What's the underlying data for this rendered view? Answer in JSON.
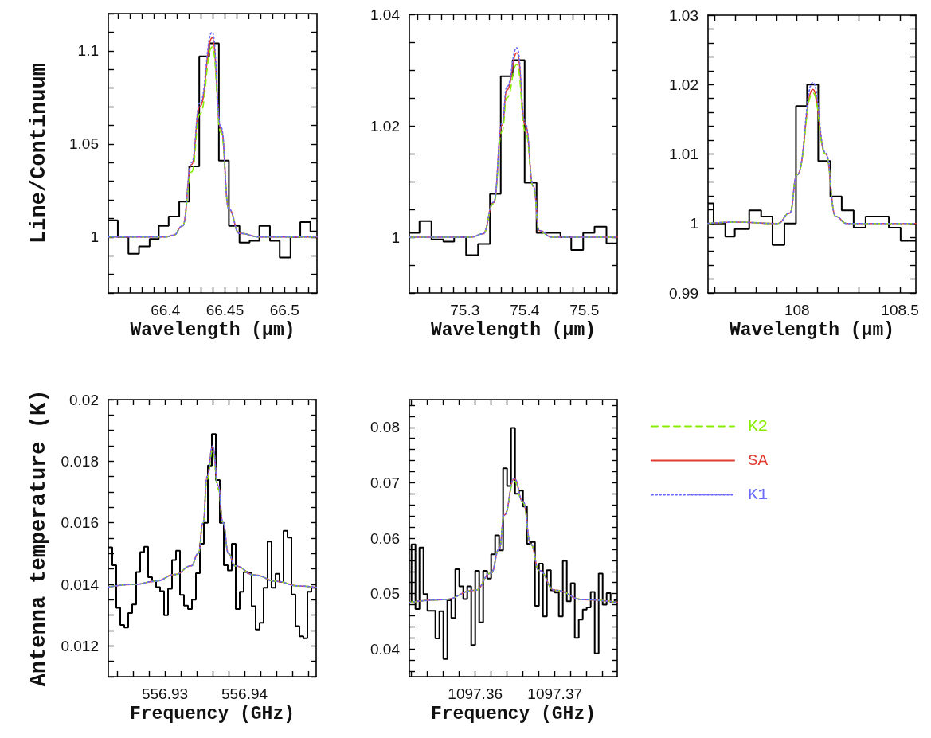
{
  "chart_data": [
    {
      "type": "line",
      "ylabel": "Line/Continuum",
      "xlabel": "Wavelength (μm)",
      "marker": "none",
      "xlim": [
        66.352,
        66.5273
      ],
      "ylim": [
        0.97,
        1.12
      ],
      "xticks": [
        {
          "value": 66.36,
          "label": null
        },
        {
          "value": 66.37,
          "label": null
        },
        {
          "value": 66.38,
          "label": null
        },
        {
          "value": 66.39,
          "label": null
        },
        66.4,
        {
          "value": 66.41,
          "label": null
        },
        {
          "value": 66.42,
          "label": null
        },
        {
          "value": 66.43,
          "label": null
        },
        {
          "value": 66.44,
          "label": null
        },
        66.45,
        {
          "value": 66.46,
          "label": null
        },
        {
          "value": 66.47,
          "label": null
        },
        {
          "value": 66.48,
          "label": null
        },
        {
          "value": 66.49,
          "label": null
        },
        66.5,
        {
          "value": 66.51,
          "label": null
        },
        {
          "value": 66.52,
          "label": null
        }
      ],
      "yticks": [
        {
          "value": 0.97,
          "label": null
        },
        {
          "value": 0.98,
          "label": null
        },
        {
          "value": 0.99,
          "label": null
        },
        1,
        {
          "value": 1.01,
          "label": null
        },
        {
          "value": 1.02,
          "label": null
        },
        {
          "value": 1.03,
          "label": null
        },
        {
          "value": 1.04,
          "label": null
        },
        1.05,
        {
          "value": 1.06,
          "label": null
        },
        {
          "value": 1.07,
          "label": null
        },
        {
          "value": 1.08,
          "label": null
        },
        {
          "value": 1.09,
          "label": null
        },
        1.1,
        {
          "value": 1.11,
          "label": null
        },
        {
          "value": 1.12,
          "label": null
        }
      ],
      "series": [
        {
          "type": "histogram",
          "color": "#000000",
          "bins": [
            66.352,
            66.36,
            66.3689,
            66.3778,
            66.3867,
            66.3944,
            66.4027,
            66.4116,
            66.42,
            66.4284,
            66.4367,
            66.4449,
            66.4533,
            66.4622,
            66.4707,
            66.4789,
            66.4878,
            66.496,
            66.5051,
            66.5133,
            66.5218,
            66.5273
          ],
          "values": [
            1.009,
            1.0,
            0.991,
            0.995,
            0.999,
            1.006,
            1.011,
            1.019,
            1.038,
            1.097,
            1.104,
            1.041,
            1.006,
            0.997,
            0.998,
            1.006,
            0.998,
            0.989,
            1.0,
            1.008,
            1.003
          ]
        },
        {
          "type": "line",
          "color": "#88ee00",
          "line_style": "dashed",
          "x": [
            66.352,
            66.38,
            66.4,
            66.4067,
            66.4144,
            66.422,
            66.4289,
            66.4393,
            66.4467,
            66.4533,
            66.4622,
            66.48,
            66.5273
          ],
          "values": [
            1.0,
            1.0,
            1.0,
            1.001,
            1.006,
            1.035,
            1.066,
            1.102,
            1.056,
            1.015,
            1.002,
            1.0,
            1.0
          ]
        },
        {
          "type": "line",
          "color": "#e03c31",
          "line_style": "solid",
          "x": [
            66.352,
            66.38,
            66.4,
            66.4067,
            66.4144,
            66.422,
            66.4289,
            66.4393,
            66.4467,
            66.4533,
            66.4622,
            66.48,
            66.5273
          ],
          "values": [
            1.0,
            1.0,
            1.0,
            1.001,
            1.006,
            1.039,
            1.07,
            1.107,
            1.058,
            1.015,
            1.002,
            1.0,
            1.0
          ]
        },
        {
          "type": "line",
          "color": "#6a6aff",
          "line_style": "dotted",
          "x": [
            66.352,
            66.38,
            66.4,
            66.4067,
            66.4144,
            66.422,
            66.4289,
            66.4393,
            66.4467,
            66.4533,
            66.4622,
            66.48,
            66.5273
          ],
          "values": [
            1.0,
            1.0,
            1.0,
            1.001,
            1.006,
            1.04,
            1.072,
            1.11,
            1.059,
            1.015,
            1.002,
            1.0,
            1.0
          ]
        }
      ]
    },
    {
      "type": "line",
      "xlabel": "Wavelength (μm)",
      "marker": "none",
      "xlim": [
        75.207,
        75.555
      ],
      "ylim": [
        0.99,
        1.04
      ],
      "xticks": [
        {
          "value": 75.22,
          "label": null
        },
        {
          "value": 75.24,
          "label": null
        },
        {
          "value": 75.26,
          "label": null
        },
        {
          "value": 75.28,
          "label": null
        },
        75.3,
        {
          "value": 75.32,
          "label": null
        },
        {
          "value": 75.34,
          "label": null
        },
        {
          "value": 75.36,
          "label": null
        },
        {
          "value": 75.38,
          "label": null
        },
        75.4,
        {
          "value": 75.42,
          "label": null
        },
        {
          "value": 75.44,
          "label": null
        },
        {
          "value": 75.46,
          "label": null
        },
        {
          "value": 75.48,
          "label": null
        },
        75.5,
        {
          "value": 75.52,
          "label": null
        },
        {
          "value": 75.54,
          "label": null
        }
      ],
      "yticks": [
        {
          "value": 0.99,
          "label": null
        },
        {
          "value": 0.995,
          "label": null
        },
        1,
        {
          "value": 1.005,
          "label": null
        },
        {
          "value": 1.01,
          "label": null
        },
        {
          "value": 1.015,
          "label": null
        },
        1.02,
        {
          "value": 1.025,
          "label": null
        },
        {
          "value": 1.03,
          "label": null
        },
        {
          "value": 1.035,
          "label": null
        },
        1.04
      ],
      "series": [
        {
          "type": "histogram",
          "color": "#000000",
          "bins": [
            75.207,
            75.224,
            75.244,
            75.264,
            75.282,
            75.302,
            75.322,
            75.342,
            75.36,
            75.38,
            75.4,
            75.42,
            75.44,
            75.46,
            75.478,
            75.498,
            75.517,
            75.537,
            75.555
          ],
          "values": [
            1.0008,
            1.0029,
            0.9996,
            0.9992,
            1.0,
            0.9968,
            0.9988,
            1.0078,
            1.0289,
            1.0318,
            1.0098,
            1.0008,
            1.0008,
            1.0,
            0.9977,
            1.0008,
            1.0019,
            0.9989
          ]
        },
        {
          "type": "line",
          "color": "#88ee00",
          "line_style": "dashed",
          "x": [
            75.207,
            75.3102,
            75.3302,
            75.348,
            75.3622,
            75.3702,
            75.3871,
            75.4013,
            75.4147,
            75.4244,
            75.4458,
            75.555
          ],
          "values": [
            1.0,
            1.0,
            1.0006,
            1.006,
            1.019,
            1.025,
            1.031,
            1.019,
            1.009,
            1.001,
            1.0,
            1.0
          ]
        },
        {
          "type": "line",
          "color": "#e03c31",
          "line_style": "solid",
          "x": [
            75.207,
            75.3102,
            75.3302,
            75.348,
            75.3622,
            75.3702,
            75.3871,
            75.4013,
            75.4147,
            75.4244,
            75.4458,
            75.555
          ],
          "values": [
            1.0,
            1.0,
            1.0006,
            1.0062,
            1.0201,
            1.0264,
            1.0331,
            1.0201,
            1.0091,
            1.0012,
            1.0,
            1.0
          ]
        },
        {
          "type": "line",
          "color": "#6a6aff",
          "line_style": "dotted",
          "x": [
            75.207,
            75.3102,
            75.3302,
            75.348,
            75.3622,
            75.3702,
            75.3871,
            75.4013,
            75.4147,
            75.4244,
            75.4458,
            75.555
          ],
          "values": [
            1.0,
            1.0,
            1.0006,
            1.0063,
            1.0205,
            1.027,
            1.034,
            1.0205,
            1.0092,
            1.0012,
            1.0,
            1.0
          ]
        }
      ]
    },
    {
      "type": "line",
      "xlabel": "Wavelength (μm)",
      "marker": "none",
      "xlim": [
        107.568,
        108.577
      ],
      "ylim": [
        0.99,
        1.03
      ],
      "xticks": [
        {
          "value": 107.6,
          "label": null
        },
        {
          "value": 107.7,
          "label": null
        },
        {
          "value": 107.8,
          "label": null
        },
        {
          "value": 107.9,
          "label": null
        },
        108,
        {
          "value": 108.1,
          "label": null
        },
        {
          "value": 108.2,
          "label": null
        },
        {
          "value": 108.3,
          "label": null
        },
        {
          "value": 108.4,
          "label": null
        },
        108.5
      ],
      "yticks": [
        0.99,
        {
          "value": 0.992,
          "label": null
        },
        {
          "value": 0.994,
          "label": null
        },
        {
          "value": 0.996,
          "label": null
        },
        {
          "value": 0.998,
          "label": null
        },
        1,
        {
          "value": 1.002,
          "label": null
        },
        {
          "value": 1.004,
          "label": null
        },
        {
          "value": 1.006,
          "label": null
        },
        {
          "value": 1.008,
          "label": null
        },
        1.01,
        {
          "value": 1.012,
          "label": null
        },
        {
          "value": 1.014,
          "label": null
        },
        {
          "value": 1.016,
          "label": null
        },
        {
          "value": 1.018,
          "label": null
        },
        1.02,
        {
          "value": 1.022,
          "label": null
        },
        {
          "value": 1.024,
          "label": null
        },
        {
          "value": 1.026,
          "label": null
        },
        {
          "value": 1.028,
          "label": null
        },
        1.03
      ],
      "series": [
        {
          "type": "histogram",
          "color": "#000000",
          "bins": [
            107.568,
            107.595,
            107.652,
            107.698,
            107.768,
            107.826,
            107.881,
            107.939,
            107.995,
            108.049,
            108.103,
            108.162,
            108.217,
            108.275,
            108.333,
            108.391,
            108.446,
            108.503,
            108.577
          ],
          "values": [
            1.0029,
            1.0,
            0.9981,
            0.9992,
            1.0019,
            1.001,
            0.9969,
            1.0,
            1.0169,
            1.02,
            1.009,
            1.0039,
            1.0019,
            0.9994,
            1.001,
            1.001,
            0.9994,
            0.9975
          ]
        },
        {
          "type": "line",
          "color": "#88ee00",
          "line_style": "dashed",
          "x": [
            107.568,
            107.7,
            107.907,
            107.965,
            108.0,
            108.077,
            108.139,
            108.188,
            108.242,
            108.577
          ],
          "values": [
            1.0,
            1.0002,
            1.0,
            1.0015,
            1.007,
            1.0188,
            1.01,
            1.001,
            1.0,
            1.0
          ]
        },
        {
          "type": "line",
          "color": "#e03c31",
          "line_style": "solid",
          "x": [
            107.568,
            107.7,
            107.907,
            107.965,
            108.0,
            108.077,
            108.139,
            108.188,
            108.242,
            108.577
          ],
          "values": [
            1.0,
            1.0002,
            1.0,
            1.0015,
            1.007,
            1.0193,
            1.01,
            1.001,
            1.0,
            1.0
          ]
        },
        {
          "type": "line",
          "color": "#6a6aff",
          "line_style": "dotted",
          "x": [
            107.568,
            107.7,
            107.907,
            107.965,
            108.0,
            108.077,
            108.139,
            108.188,
            108.242,
            108.577
          ],
          "values": [
            1.0,
            1.0002,
            1.0,
            1.0015,
            1.007,
            1.0203,
            1.0102,
            1.001,
            1.0,
            1.0
          ]
        }
      ]
    },
    {
      "type": "line",
      "ylabel": "Antenna temperature (K)",
      "xlabel": "Frequency (GHz)",
      "marker": "none",
      "xlim": [
        556.9229,
        556.949
      ],
      "ylim": [
        0.011,
        0.02
      ],
      "xticks": [
        {
          "value": 556.924,
          "label": null
        },
        {
          "value": 556.926,
          "label": null
        },
        {
          "value": 556.928,
          "label": null
        },
        556.93,
        {
          "value": 556.932,
          "label": null
        },
        {
          "value": 556.934,
          "label": null
        },
        {
          "value": 556.936,
          "label": null
        },
        {
          "value": 556.938,
          "label": null
        },
        556.94,
        {
          "value": 556.942,
          "label": null
        },
        {
          "value": 556.944,
          "label": null
        },
        {
          "value": 556.946,
          "label": null
        },
        {
          "value": 556.948,
          "label": null
        }
      ],
      "yticks": [
        {
          "value": 0.011,
          "label": null
        },
        {
          "value": 0.0115,
          "label": null
        },
        0.012,
        {
          "value": 0.0125,
          "label": null
        },
        {
          "value": 0.013,
          "label": null
        },
        {
          "value": 0.0135,
          "label": null
        },
        0.014,
        {
          "value": 0.0145,
          "label": null
        },
        {
          "value": 0.015,
          "label": null
        },
        {
          "value": 0.0155,
          "label": null
        },
        0.016,
        {
          "value": 0.0165,
          "label": null
        },
        {
          "value": 0.017,
          "label": null
        },
        {
          "value": 0.0175,
          "label": null
        },
        0.018,
        {
          "value": 0.0185,
          "label": null
        },
        {
          "value": 0.019,
          "label": null
        },
        {
          "value": 0.0195,
          "label": null
        },
        0.02
      ],
      "series": [
        {
          "type": "histogram",
          "color": "#000000",
          "bins": [
            556.9229,
            556.9234,
            556.9239,
            556.9244,
            556.9249,
            556.9254,
            556.9259,
            556.9264,
            556.9269,
            556.9274,
            556.9279,
            556.9284,
            556.9289,
            556.9294,
            556.9299,
            556.9304,
            556.9309,
            556.9314,
            556.9319,
            556.9324,
            556.9329,
            556.9334,
            556.9339,
            556.9344,
            556.9349,
            556.9354,
            556.9359,
            556.9364,
            556.9369,
            556.9374,
            556.9379,
            556.9384,
            556.9389,
            556.9394,
            556.9399,
            556.9404,
            556.9409,
            556.9414,
            556.9419,
            556.9424,
            556.9429,
            556.9434,
            556.9439,
            556.9444,
            556.9449,
            556.9454,
            556.9459,
            556.9464,
            556.9469,
            556.9474,
            556.9479,
            556.9484,
            556.949
          ],
          "values": [
            0.0152,
            0.01462,
            0.01324,
            0.01268,
            0.0126,
            0.01307,
            0.01335,
            0.0144,
            0.01505,
            0.01522,
            0.01423,
            0.01412,
            0.01391,
            0.01378,
            0.013,
            0.01386,
            0.01479,
            0.01509,
            0.01366,
            0.01331,
            0.0132,
            0.0135,
            0.01436,
            0.01532,
            0.016,
            0.01786,
            0.01888,
            0.01739,
            0.016,
            0.01462,
            0.01445,
            0.01532,
            0.0132,
            0.01376,
            0.0144,
            0.01436,
            0.01329,
            0.01253,
            0.01275,
            0.01389,
            0.01539,
            0.01389,
            0.01434,
            0.01408,
            0.01574,
            0.01552,
            0.01367,
            0.01264,
            0.01231,
            0.01225,
            0.01376,
            0.01389
          ]
        },
        {
          "type": "line",
          "color": "#88ee00",
          "line_style": "dashed",
          "x": [
            556.9229,
            556.9263,
            556.9288,
            556.9313,
            556.9333,
            556.9342,
            556.9348,
            556.9353,
            556.936,
            556.9367,
            556.9373,
            556.938,
            556.9388,
            556.9413,
            556.944,
            556.9467,
            556.949
          ],
          "values": [
            0.01391,
            0.014,
            0.0141,
            0.01432,
            0.0146,
            0.015,
            0.016,
            0.0174,
            0.01835,
            0.0171,
            0.016,
            0.015,
            0.0146,
            0.0143,
            0.0141,
            0.01395,
            0.0139
          ]
        },
        {
          "type": "line",
          "color": "#e03c31",
          "line_style": "solid",
          "x": [
            556.9229,
            556.9263,
            556.9288,
            556.9313,
            556.9333,
            556.9342,
            556.9348,
            556.9353,
            556.936,
            556.9367,
            556.9373,
            556.938,
            556.9388,
            556.9413,
            556.944,
            556.9467,
            556.949
          ],
          "values": [
            0.01391,
            0.014,
            0.0141,
            0.01432,
            0.0146,
            0.015,
            0.016,
            0.0175,
            0.01845,
            0.0172,
            0.016,
            0.015,
            0.0146,
            0.0143,
            0.0141,
            0.01395,
            0.0139
          ]
        },
        {
          "type": "line",
          "color": "#6a6aff",
          "line_style": "dotted",
          "x": [
            556.9229,
            556.9263,
            556.9288,
            556.9313,
            556.9333,
            556.9342,
            556.9348,
            556.9353,
            556.936,
            556.9367,
            556.9373,
            556.938,
            556.9388,
            556.9413,
            556.944,
            556.9467,
            556.949
          ],
          "values": [
            0.01391,
            0.014,
            0.0141,
            0.01432,
            0.0146,
            0.015,
            0.016,
            0.0175,
            0.0185,
            0.0172,
            0.016,
            0.015,
            0.0146,
            0.0143,
            0.0141,
            0.01395,
            0.0139
          ]
        }
      ]
    },
    {
      "type": "line",
      "xlabel": "Frequency (GHz)",
      "marker": "none",
      "legend": "right",
      "xlim": [
        1097.35173,
        1097.37783
      ],
      "ylim": [
        0.035,
        0.085
      ],
      "xticks": [
        {
          "value": 1097.352,
          "label": null
        },
        {
          "value": 1097.354,
          "label": null
        },
        {
          "value": 1097.356,
          "label": null
        },
        {
          "value": 1097.358,
          "label": null
        },
        1097.36,
        {
          "value": 1097.362,
          "label": null
        },
        {
          "value": 1097.364,
          "label": null
        },
        {
          "value": 1097.366,
          "label": null
        },
        {
          "value": 1097.368,
          "label": null
        },
        1097.37,
        {
          "value": 1097.372,
          "label": null
        },
        {
          "value": 1097.374,
          "label": null
        },
        {
          "value": 1097.376,
          "label": null
        }
      ],
      "yticks": [
        {
          "value": 0.036,
          "label": null
        },
        {
          "value": 0.038,
          "label": null
        },
        0.04,
        {
          "value": 0.042,
          "label": null
        },
        {
          "value": 0.044,
          "label": null
        },
        {
          "value": 0.046,
          "label": null
        },
        {
          "value": 0.048,
          "label": null
        },
        0.05,
        {
          "value": 0.052,
          "label": null
        },
        {
          "value": 0.054,
          "label": null
        },
        {
          "value": 0.056,
          "label": null
        },
        {
          "value": 0.058,
          "label": null
        },
        0.06,
        {
          "value": 0.062,
          "label": null
        },
        {
          "value": 0.064,
          "label": null
        },
        {
          "value": 0.066,
          "label": null
        },
        {
          "value": 0.068,
          "label": null
        },
        0.07,
        {
          "value": 0.072,
          "label": null
        },
        {
          "value": 0.074,
          "label": null
        },
        {
          "value": 0.076,
          "label": null
        },
        {
          "value": 0.078,
          "label": null
        },
        0.08,
        {
          "value": 0.082,
          "label": null
        },
        {
          "value": 0.084,
          "label": null
        }
      ],
      "series": [
        {
          "type": "histogram",
          "color": "#000000",
          "bins": [
            1097.35173,
            1097.352,
            1097.3525,
            1097.353,
            1097.3535,
            1097.354,
            1097.3545,
            1097.355,
            1097.3555,
            1097.356,
            1097.3565,
            1097.357,
            1097.3575,
            1097.358,
            1097.3585,
            1097.359,
            1097.3595,
            1097.36,
            1097.3605,
            1097.361,
            1097.3615,
            1097.362,
            1097.3625,
            1097.363,
            1097.3635,
            1097.364,
            1097.3645,
            1097.365,
            1097.3655,
            1097.366,
            1097.3665,
            1097.367,
            1097.3675,
            1097.368,
            1097.3685,
            1097.369,
            1097.3695,
            1097.37,
            1097.3705,
            1097.371,
            1097.3715,
            1097.372,
            1097.3725,
            1097.373,
            1097.3735,
            1097.374,
            1097.3745,
            1097.375,
            1097.3755,
            1097.376,
            1097.3765,
            1097.377,
            1097.3775,
            1097.37783
          ],
          "values": [
            0.0484,
            0.0589,
            0.0472,
            0.0583,
            0.0499,
            0.0469,
            0.0469,
            0.0419,
            0.0468,
            0.0382,
            0.0488,
            0.0456,
            0.0544,
            0.0513,
            0.049,
            0.0513,
            0.0407,
            0.0541,
            0.0448,
            0.0541,
            0.0527,
            0.0571,
            0.0605,
            0.0578,
            0.0726,
            0.0694,
            0.0799,
            0.068,
            0.0686,
            0.0657,
            0.059,
            0.0593,
            0.0478,
            0.0554,
            0.0459,
            0.0542,
            0.0506,
            0.0502,
            0.0459,
            0.0559,
            0.0486,
            0.0519,
            0.042,
            0.0453,
            0.0471,
            0.0475,
            0.0503,
            0.0392,
            0.0536,
            0.048,
            0.0501,
            0.0484,
            0.0489
          ]
        },
        {
          "name": "K2",
          "type": "line",
          "color": "#88ee00",
          "line_style": "dashed",
          "x": [
            1097.35173,
            1097.356,
            1097.36,
            1097.362,
            1097.363,
            1097.36367,
            1097.3649,
            1097.366,
            1097.367,
            1097.368,
            1097.37,
            1097.37367,
            1097.37783
          ],
          "values": [
            0.0484,
            0.0489,
            0.0506,
            0.0537,
            0.058,
            0.0642,
            0.0703,
            0.0664,
            0.0588,
            0.0542,
            0.0506,
            0.0489,
            0.0484
          ]
        },
        {
          "name": "SA",
          "type": "line",
          "color": "#e03c31",
          "line_style": "solid",
          "x": [
            1097.35173,
            1097.356,
            1097.36,
            1097.362,
            1097.363,
            1097.36367,
            1097.3649,
            1097.366,
            1097.367,
            1097.368,
            1097.37,
            1097.37367,
            1097.37783
          ],
          "values": [
            0.0484,
            0.0489,
            0.0506,
            0.0537,
            0.058,
            0.0642,
            0.0707,
            0.0666,
            0.0589,
            0.0542,
            0.0506,
            0.0489,
            0.0484
          ]
        },
        {
          "name": "K1",
          "type": "line",
          "color": "#6a6aff",
          "line_style": "dotted",
          "x": [
            1097.35173,
            1097.356,
            1097.36,
            1097.362,
            1097.363,
            1097.36367,
            1097.3649,
            1097.366,
            1097.367,
            1097.368,
            1097.37,
            1097.37367,
            1097.37783
          ],
          "values": [
            0.0484,
            0.0489,
            0.0506,
            0.0537,
            0.058,
            0.0642,
            0.0708,
            0.0667,
            0.0589,
            0.0542,
            0.0506,
            0.0489,
            0.0484
          ]
        }
      ]
    }
  ]
}
